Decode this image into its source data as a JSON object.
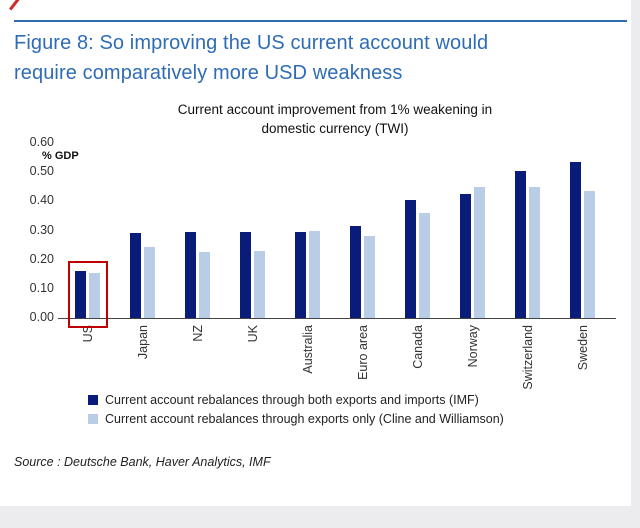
{
  "page": {
    "figure_title_line1": "Figure 8: So improving the US current account would",
    "figure_title_line2": "require comparatively more USD weakness",
    "source": "Source : Deutsche Bank, Haver Analytics, IMF"
  },
  "colors": {
    "title_blue": "#2e6cb5",
    "series_dark": "#0a1c7a",
    "series_light": "#b9cde6",
    "highlight_red": "#c00000"
  },
  "chart_data": {
    "type": "bar",
    "title": "Current account improvement from 1% weakening in domestic currency (TWI)",
    "title_lines": [
      "Current account improvement from 1% weakening in",
      "domestic currency (TWI)"
    ],
    "ylabel": "% GDP",
    "ylim": [
      0,
      0.6
    ],
    "ytick_step": 0.1,
    "yticks": [
      "0.60",
      "0.50",
      "0.40",
      "0.30",
      "0.20",
      "0.10",
      "0.00"
    ],
    "grid": false,
    "legend_position": "bottom",
    "categories": [
      "US",
      "Japan",
      "NZ",
      "UK",
      "Australia",
      "Euro area",
      "Canada",
      "Norway",
      "Switzerland",
      "Sweden"
    ],
    "series": [
      {
        "name": "Current account rebalances through both exports and imports (IMF)",
        "color": "#0a1c7a",
        "values": [
          0.16,
          0.29,
          0.295,
          0.295,
          0.295,
          0.315,
          0.405,
          0.425,
          0.505,
          0.535
        ]
      },
      {
        "name": "Current account rebalances through exports only (Cline and Williamson)",
        "color": "#b9cde6",
        "values": [
          0.155,
          0.245,
          0.225,
          0.23,
          0.3,
          0.28,
          0.36,
          0.45,
          0.45,
          0.435
        ]
      }
    ],
    "highlight": {
      "category": "US",
      "color": "#c00000"
    }
  }
}
